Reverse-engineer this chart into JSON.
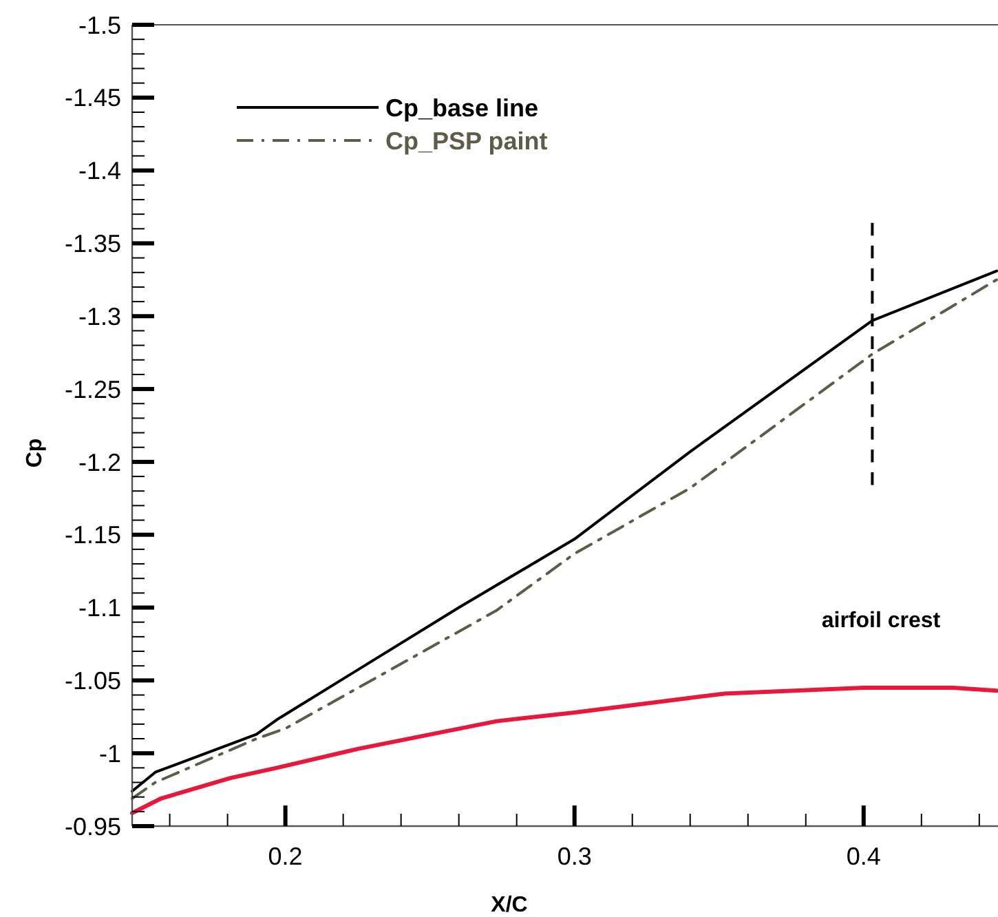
{
  "chart_data": {
    "type": "line",
    "xlabel": "X/C",
    "ylabel": "Cp",
    "xlim": [
      0.147,
      0.446
    ],
    "ylim": [
      -0.95,
      -1.5
    ],
    "xticks": [
      {
        "value": 0.16,
        "label": null
      },
      {
        "value": 0.18,
        "label": null
      },
      0.2,
      {
        "value": 0.22,
        "label": null
      },
      {
        "value": 0.24,
        "label": null
      },
      {
        "value": 0.26,
        "label": null
      },
      {
        "value": 0.28,
        "label": null
      },
      0.3,
      {
        "value": 0.32,
        "label": null
      },
      {
        "value": 0.34,
        "label": null
      },
      {
        "value": 0.36,
        "label": null
      },
      {
        "value": 0.38,
        "label": null
      },
      0.4,
      {
        "value": 0.42,
        "label": null
      },
      {
        "value": 0.44,
        "label": null
      }
    ],
    "yticks": [
      -1.5,
      {
        "value": -1.49,
        "label": null
      },
      {
        "value": -1.48,
        "label": null
      },
      {
        "value": -1.47,
        "label": null
      },
      {
        "value": -1.46,
        "label": null
      },
      -1.45,
      {
        "value": -1.44,
        "label": null
      },
      {
        "value": -1.43,
        "label": null
      },
      {
        "value": -1.42,
        "label": null
      },
      {
        "value": -1.41,
        "label": null
      },
      -1.4,
      {
        "value": -1.39,
        "label": null
      },
      {
        "value": -1.38,
        "label": null
      },
      {
        "value": -1.37,
        "label": null
      },
      {
        "value": -1.36,
        "label": null
      },
      -1.35,
      {
        "value": -1.34,
        "label": null
      },
      {
        "value": -1.33,
        "label": null
      },
      {
        "value": -1.32,
        "label": null
      },
      {
        "value": -1.31,
        "label": null
      },
      -1.3,
      {
        "value": -1.29,
        "label": null
      },
      {
        "value": -1.28,
        "label": null
      },
      {
        "value": -1.27,
        "label": null
      },
      {
        "value": -1.26,
        "label": null
      },
      -1.25,
      {
        "value": -1.24,
        "label": null
      },
      {
        "value": -1.23,
        "label": null
      },
      {
        "value": -1.22,
        "label": null
      },
      {
        "value": -1.21,
        "label": null
      },
      -1.2,
      {
        "value": -1.19,
        "label": null
      },
      {
        "value": -1.18,
        "label": null
      },
      {
        "value": -1.17,
        "label": null
      },
      {
        "value": -1.16,
        "label": null
      },
      -1.15,
      {
        "value": -1.14,
        "label": null
      },
      {
        "value": -1.13,
        "label": null
      },
      {
        "value": -1.12,
        "label": null
      },
      {
        "value": -1.11,
        "label": null
      },
      -1.1,
      {
        "value": -1.09,
        "label": null
      },
      {
        "value": -1.08,
        "label": null
      },
      {
        "value": -1.07,
        "label": null
      },
      {
        "value": -1.06,
        "label": null
      },
      -1.05,
      {
        "value": -1.04,
        "label": null
      },
      {
        "value": -1.03,
        "label": null
      },
      {
        "value": -1.02,
        "label": null
      },
      {
        "value": -1.01,
        "label": null
      },
      -1,
      {
        "value": -0.99,
        "label": null
      },
      {
        "value": -0.98,
        "label": null
      },
      {
        "value": -0.97,
        "label": null
      },
      {
        "value": -0.96,
        "label": null
      },
      -0.95
    ],
    "grid": false,
    "legend": "top left",
    "marker": "none",
    "series": [
      {
        "name": "Cp_base line",
        "color": "#000000",
        "line_style": "solid",
        "x": [
          0.147,
          0.155,
          0.19,
          0.197,
          0.26,
          0.3,
          0.34,
          0.403,
          0.446
        ],
        "values": [
          -0.974,
          -0.987,
          -1.013,
          -1.023,
          -1.1,
          -1.147,
          -1.207,
          -1.297,
          -1.331
        ]
      },
      {
        "name": "Cp_PSP paint",
        "color": "#5c5c48",
        "line_style": "dashdot",
        "x": [
          0.147,
          0.155,
          0.19,
          0.2,
          0.273,
          0.3,
          0.34,
          0.403,
          0.446
        ],
        "values": [
          -0.969,
          -0.98,
          -1.01,
          -1.017,
          -1.098,
          -1.137,
          -1.182,
          -1.274,
          -1.325
        ]
      },
      {
        "color": "#e8183c",
        "line_style": "solid",
        "x": [
          0.147,
          0.157,
          0.181,
          0.197,
          0.225,
          0.273,
          0.3,
          0.352,
          0.4,
          0.431,
          0.446
        ],
        "values": [
          -0.959,
          -0.969,
          -0.983,
          -0.99,
          -1.003,
          -1.022,
          -1.028,
          -1.041,
          -1.045,
          -1.045,
          -1.043
        ]
      },
      {
        "color": "#000000",
        "line_style": "dashed",
        "x": [
          0.403,
          0.403
        ],
        "values": [
          -1.364,
          -1.184
        ]
      }
    ],
    "annotations": [
      {
        "text": "airfoil crest",
        "x": 0.406,
        "y": -1.045
      }
    ]
  }
}
